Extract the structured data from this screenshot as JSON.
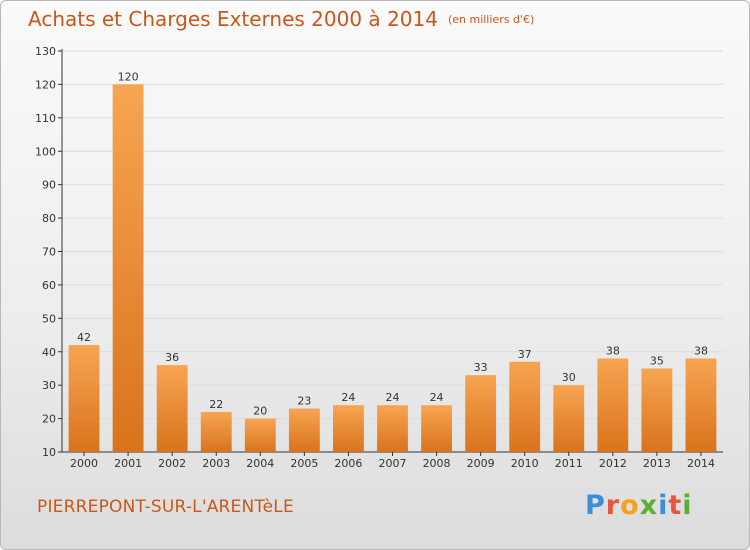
{
  "header": {
    "title": "Achats et Charges Externes 2000 à 2014",
    "unit": "(en milliers d'€)"
  },
  "footer": {
    "place": "PIERREPONT-SUR-L'ARENTèLE",
    "logo": "Proxiti",
    "logo_colors": [
      "#3a8fd6",
      "#e8553b",
      "#f2a21c",
      "#5ab02f",
      "#3a8fd6",
      "#e8553b",
      "#5ab02f"
    ]
  },
  "colors": {
    "bar_light": "#f7a552",
    "bar_dark": "#d9731c",
    "title": "#c8581a",
    "grid": "#dddddd"
  },
  "chart_data": {
    "type": "bar",
    "categories": [
      "2000",
      "2001",
      "2002",
      "2003",
      "2004",
      "2005",
      "2006",
      "2007",
      "2008",
      "2009",
      "2010",
      "2011",
      "2012",
      "2013",
      "2014"
    ],
    "values": [
      42,
      120,
      36,
      22,
      20,
      23,
      24,
      24,
      24,
      33,
      37,
      30,
      38,
      35,
      38
    ],
    "ylim": [
      10,
      130
    ],
    "yticks": [
      10,
      20,
      30,
      40,
      50,
      60,
      70,
      80,
      90,
      100,
      110,
      120,
      130
    ],
    "grid": true,
    "title": "Achats et Charges Externes 2000 à 2014",
    "xlabel": "",
    "ylabel": ""
  }
}
